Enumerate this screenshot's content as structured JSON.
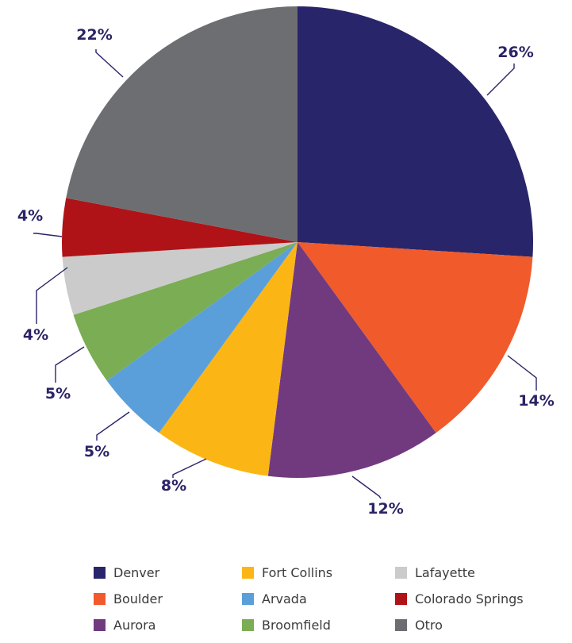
{
  "chart_data": {
    "type": "pie",
    "categories": [
      "Denver",
      "Boulder",
      "Aurora",
      "Fort Collins",
      "Arvada",
      "Broomfield",
      "Lafayette",
      "Colorado Springs",
      "Otro"
    ],
    "values": [
      26,
      14,
      12,
      8,
      5,
      5,
      4,
      4,
      22
    ],
    "labels": [
      "26%",
      "14%",
      "12%",
      "8%",
      "5%",
      "5%",
      "4%",
      "4%",
      "22%"
    ],
    "colors": [
      "#29256a",
      "#f15a2b",
      "#713a7f",
      "#fbb616",
      "#5a9fd9",
      "#7aad54",
      "#cbcbcb",
      "#b01317",
      "#6d6e71"
    ],
    "legend_position": "bottom"
  }
}
